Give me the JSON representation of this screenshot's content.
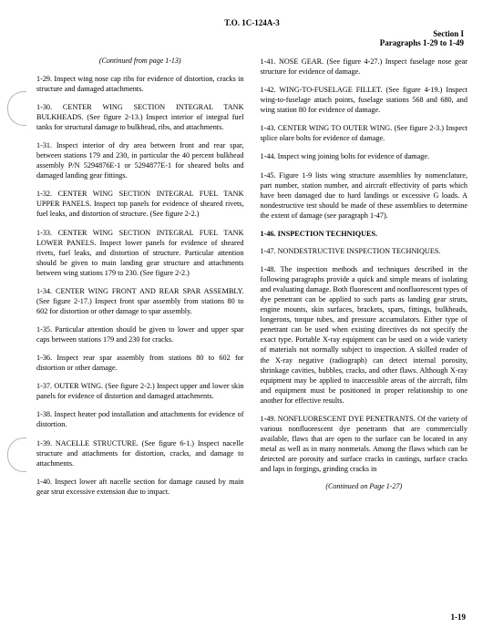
{
  "header": "T.O. 1C-124A-3",
  "subheader_line1": "Section I",
  "subheader_line2": "Paragraphs 1-29 to 1-49",
  "continued_top": "(Continued from page 1-13)",
  "continued_bottom": "(Continued on Page 1-27)",
  "pagenum": "1-19",
  "left": {
    "p1": "1-29. Inspect wing nose cap ribs for evidence of distortion, cracks in structure and damaged attachments.",
    "p2": "1-30. CENTER WING SECTION INTEGRAL TANK BULKHEADS. (See figure 2-13.) Inspect interior of integral fuel tanks for structural damage to bulkhead, ribs, and attachments.",
    "p3": "1-31. Inspect interior of dry area between front and rear spar, between stations 179 and 230, in particular the 40 percent bulkhead assembly P/N 5294876E-1 or 5294877E-1 for sheared bolts and damaged landing gear fittings.",
    "p4": "1-32. CENTER WING SECTION INTEGRAL FUEL TANK UPPER PANELS. Inspect top panels for evidence of sheared rivets, fuel leaks, and distortion of structure. (See figure 2-2.)",
    "p5": "1-33. CENTER WING SECTION INTEGRAL FUEL TANK LOWER PANELS. Inspect lower panels for evidence of sheared rivets, fuel leaks, and distortion of structure. Particular attention should be given to main landing gear structure and attachments between wing stations 179 to 230. (See figure 2-2.)",
    "p6": "1-34. CENTER WING FRONT AND REAR SPAR ASSEMBLY. (See figure 2-17.) Inspect front spar assembly from stations 80 to 602 for distortion or other damage to spar assembly.",
    "p7": "1-35. Particular attention should be given to lower and upper spar caps between stations 179 and 230 for cracks.",
    "p8": "1-36. Inspect rear spar assembly from stations 80 to 602 for distortion or other damage.",
    "p9": "1-37. OUTER WING. (See figure 2-2.) Inspect upper and lower skin panels for evidence of distortion and damaged attachments.",
    "p10": "1-38. Inspect heater pod installation and attachments for evidence of distortion.",
    "p11": "1-39. NACELLE STRUCTURE. (See figure 6-1.) Inspect nacelle structure and attachments for distortion, cracks, and damage to attachments.",
    "p12": "1-40. Inspect lower aft nacelle section for damage caused by main gear strut excessive extension due to impact."
  },
  "right": {
    "p1": "1-41. NOSE GEAR. (See figure 4-27.) Inspect fuselage nose gear structure for evidence of damage.",
    "p2": "1-42. WING-TO-FUSELAGE FILLET. (See figure 4-19.) Inspect wing-to-fuselage attach points, fuselage stations 568 and 680, and wing station 80 for evidence of damage.",
    "p3": "1-43. CENTER WING TO OUTER WING. (See figure 2-3.) Inspect splice olare bolts for evidence of damage.",
    "p4": "1-44. Inspect wing joining bolts for evidence of damage.",
    "p5": "1-45. Figure 1-9 lists wing structure assemblies by nomenclature, part number, station number, and aircraft effectivity of parts which have been damaged due to hard landings or excessive G loads. A nondestructive test should be made of these assemblies to determine the extent of damage (see paragraph 1-47).",
    "p6": "1-46. INSPECTION TECHNIQUES.",
    "p7": "1-47. NONDESTRUCTIVE INSPECTION TECHNIQUES.",
    "p8": "1-48. The inspection methods and techniques described in the following paragraphs provide a quick and simple means of isolating and evaluating damage. Both fluorescent and nonfluorescent types of dye penetrant can be applied to such parts as landing gear struts, engine mounts, skin surfaces, brackets, spars, fittings, bulkheads, longerons, torque tubes, and pressure accumulators. Either type of penetrant can be used when existing directives do not specify the exact type. Portable X-ray equipment can be used on a wide variety of materials not normally subject to inspection. A skilled reader of the X-ray negative (radiograph) can detect internal porosity, shrinkage cavities, bubbles, cracks, and other flaws. Although X-ray equipment may be applied to inaccessible areas of the aircraft, film and equipment must be positioned in proper relationship to one another for effective results.",
    "p9": "1-49. NONFLUORESCENT DYE PENETRANTS. Of the variety of various nonfluorescent dye penetrants that are commercially available, flaws that are open to the surface can be located in any metal as well as in many nonmetals. Among the flaws which can be detected are porosity and surface cracks in castings, surface cracks and laps in forgings, grinding cracks in"
  }
}
